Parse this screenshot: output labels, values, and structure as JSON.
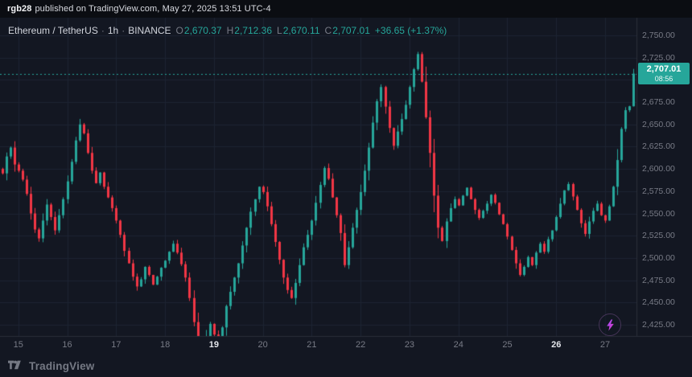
{
  "attribution": {
    "username": "rgb28",
    "rest": "published on TradingView.com, May 27, 2025 13:51 UTC-4"
  },
  "header": {
    "symbol": "Ethereum / TetherUS",
    "sep": "·",
    "interval": "1h",
    "exchange": "BINANCE",
    "ohlc": {
      "o_label": "O",
      "o": "2,670.37",
      "h_label": "H",
      "h": "2,712.36",
      "l_label": "L",
      "l": "2,670.11",
      "c_label": "C",
      "c": "2,707.01",
      "change": "+36.65 (+1.37%)"
    }
  },
  "price_badge": {
    "price": "2,707.01",
    "countdown": "08:56"
  },
  "footer": {
    "brand": "TradingView"
  },
  "colors": {
    "background": "#131722",
    "attribution_bg": "#0b0d12",
    "grid": "#1d2433",
    "axis_line": "#2a2e39",
    "up": "#26a69a",
    "down": "#f23645",
    "text_muted": "#787b86",
    "text_bright": "#d1d4dc",
    "badge_bg": "#26a69a",
    "boost_accent": "#c93ccf"
  },
  "chart_data": {
    "type": "candlestick",
    "title": "Ethereum / TetherUS",
    "interval": "1h",
    "exchange": "BINANCE",
    "ylim": [
      2412,
      2762
    ],
    "grid": true,
    "legend_position": "none",
    "y_ticks": [
      {
        "value": 2750,
        "label": "2,750.00"
      },
      {
        "value": 2725,
        "label": "2,725.00"
      },
      {
        "value": 2700,
        "label": "2,700.00"
      },
      {
        "value": 2675,
        "label": "2,675.00"
      },
      {
        "value": 2650,
        "label": "2,650.00"
      },
      {
        "value": 2625,
        "label": "2,625.00"
      },
      {
        "value": 2600,
        "label": "2,600.00"
      },
      {
        "value": 2575,
        "label": "2,575.00"
      },
      {
        "value": 2550,
        "label": "2,550.00"
      },
      {
        "value": 2525,
        "label": "2,525.00"
      },
      {
        "value": 2500,
        "label": "2,500.00"
      },
      {
        "value": 2475,
        "label": "2,475.00"
      },
      {
        "value": 2450,
        "label": "2,450.00"
      },
      {
        "value": 2425,
        "label": "2,425.00"
      }
    ],
    "x_ticks": [
      {
        "day": 15,
        "label": "15",
        "emphasis": false
      },
      {
        "day": 16,
        "label": "16",
        "emphasis": false
      },
      {
        "day": 17,
        "label": "17",
        "emphasis": false
      },
      {
        "day": 18,
        "label": "18",
        "emphasis": false
      },
      {
        "day": 19,
        "label": "19",
        "emphasis": true
      },
      {
        "day": 20,
        "label": "20",
        "emphasis": false
      },
      {
        "day": 21,
        "label": "21",
        "emphasis": false
      },
      {
        "day": 22,
        "label": "22",
        "emphasis": false
      },
      {
        "day": 23,
        "label": "23",
        "emphasis": false
      },
      {
        "day": 24,
        "label": "24",
        "emphasis": false
      },
      {
        "day": 25,
        "label": "25",
        "emphasis": false
      },
      {
        "day": 26,
        "label": "26",
        "emphasis": true
      },
      {
        "day": 27,
        "label": "27",
        "emphasis": false
      }
    ],
    "last_bar": {
      "open": 2670.37,
      "high": 2712.36,
      "low": 2670.11,
      "close": 2707.01,
      "change": 36.65,
      "change_pct": 1.37
    },
    "last_price_line": 2707.01,
    "pre_candles": 4,
    "candles_per_day": 12,
    "closes": [
      2595,
      2614,
      2624,
      2605,
      2598,
      2588,
      2572,
      2550,
      2532,
      2522,
      2542,
      2560,
      2546,
      2531,
      2548,
      2566,
      2586,
      2608,
      2632,
      2650,
      2640,
      2618,
      2598,
      2584,
      2596,
      2580,
      2568,
      2556,
      2542,
      2526,
      2508,
      2494,
      2479,
      2468,
      2476,
      2490,
      2481,
      2470,
      2479,
      2489,
      2497,
      2507,
      2516,
      2506,
      2493,
      2478,
      2455,
      2428,
      2404,
      2392,
      2412,
      2426,
      2414,
      2400,
      2422,
      2446,
      2462,
      2478,
      2494,
      2514,
      2534,
      2552,
      2566,
      2580,
      2574,
      2558,
      2538,
      2518,
      2498,
      2478,
      2464,
      2455,
      2472,
      2492,
      2512,
      2526,
      2542,
      2562,
      2582,
      2601,
      2589,
      2568,
      2548,
      2528,
      2492,
      2512,
      2534,
      2554,
      2574,
      2598,
      2624,
      2652,
      2676,
      2692,
      2670,
      2646,
      2626,
      2642,
      2656,
      2672,
      2692,
      2712,
      2729,
      2698,
      2658,
      2618,
      2570,
      2534,
      2519,
      2541,
      2556,
      2566,
      2559,
      2570,
      2579,
      2566,
      2554,
      2545,
      2553,
      2561,
      2571,
      2562,
      2549,
      2538,
      2524,
      2509,
      2494,
      2481,
      2490,
      2501,
      2492,
      2506,
      2516,
      2507,
      2521,
      2531,
      2546,
      2561,
      2576,
      2583,
      2569,
      2554,
      2539,
      2527,
      2541,
      2553,
      2561,
      2548,
      2542,
      2558,
      2580,
      2610,
      2645,
      2666,
      2670.4,
      2707.01
    ]
  }
}
